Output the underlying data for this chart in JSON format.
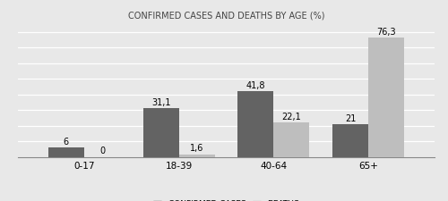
{
  "title": "CONFIRMED CASES AND DEATHS BY AGE (%)",
  "categories": [
    "0-17",
    "18-39",
    "40-64",
    "65+"
  ],
  "confirmed_cases": [
    6,
    31.1,
    41.8,
    21
  ],
  "deaths": [
    0,
    1.6,
    22.1,
    76.3
  ],
  "confirmed_color": "#636363",
  "deaths_color": "#bebebe",
  "background_color": "#e8e8e8",
  "plot_bg_color": "#e8e8e8",
  "grid_color": "#ffffff",
  "ylim": [
    0,
    85
  ],
  "bar_width": 0.38,
  "legend_labels": [
    "CONFIRMED CASES",
    "DEATHS"
  ],
  "title_fontsize": 7.0,
  "label_fontsize": 7.0,
  "tick_fontsize": 7.5,
  "legend_fontsize": 6.5,
  "yticks": [
    0,
    10,
    20,
    30,
    40,
    50,
    60,
    70,
    80
  ]
}
